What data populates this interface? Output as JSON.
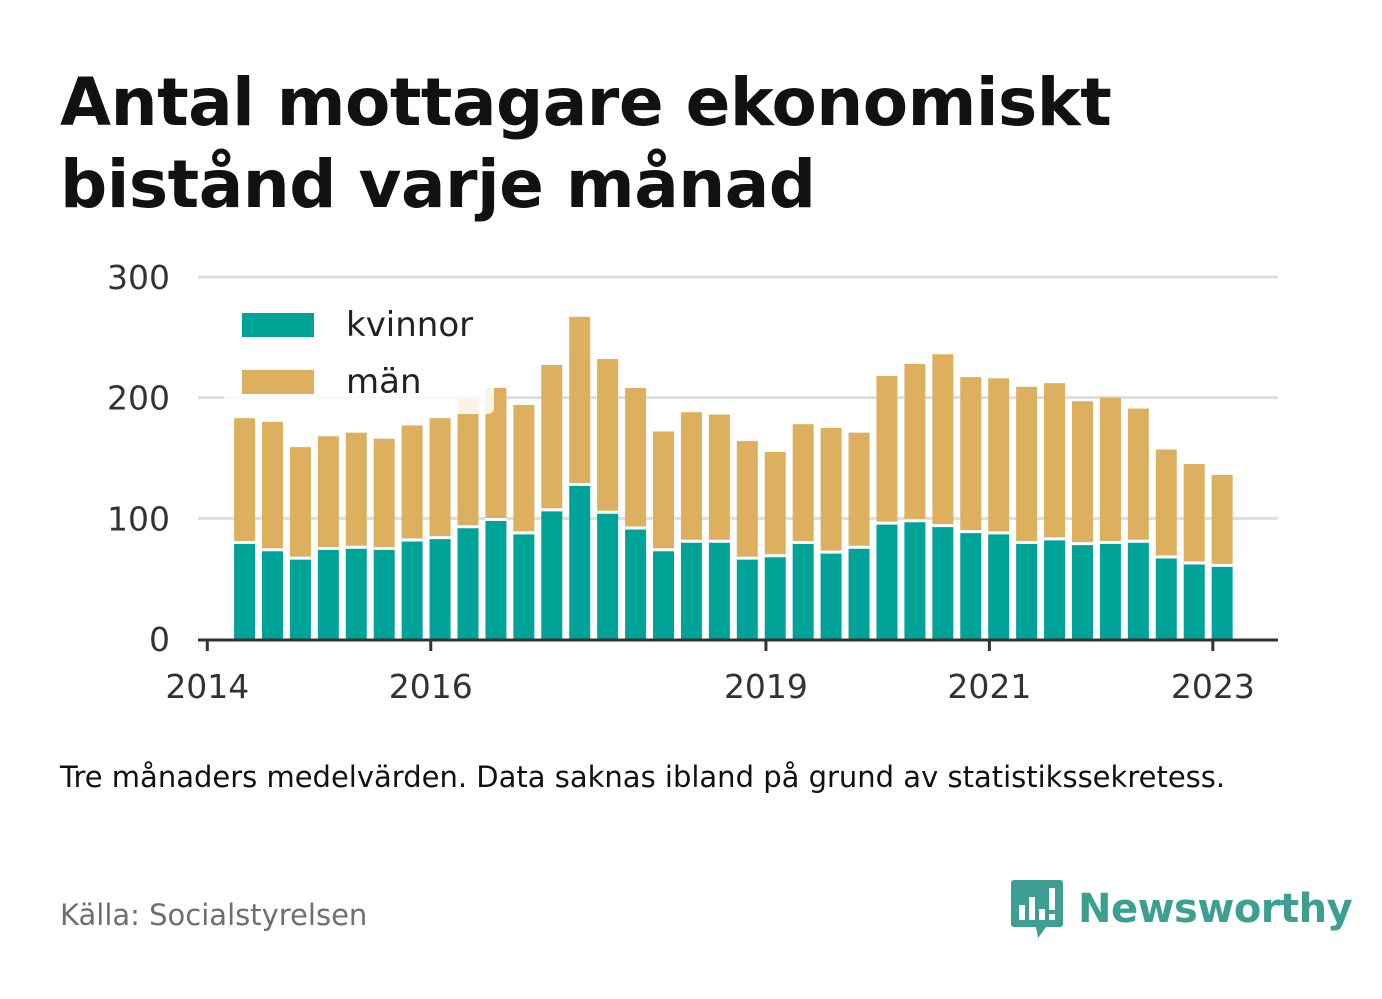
{
  "header": {
    "title": "Antal mottagare ekonomiskt bistånd varje månad"
  },
  "footer": {
    "note": "Tre månaders medelvärden. Data saknas ibland på grund av statistikssekretess.",
    "source": "Källa: Socialstyrelsen",
    "brand": "Newsworthy",
    "brand_icon": "bar-chart-speech-bubble-icon"
  },
  "colors": {
    "kvinnor": "#00a398",
    "man": "#dcb05f",
    "brand": "#3d9e92",
    "grid": "#dddddd",
    "axis": "#333333"
  },
  "chart_data": {
    "type": "bar",
    "stacked": true,
    "title": "Antal mottagare ekonomiskt bistånd varje månad",
    "ylim": [
      0,
      300
    ],
    "yticks": [
      0,
      100,
      200,
      300
    ],
    "xticks": [
      "2014",
      "2016",
      "2019",
      "2021",
      "2023"
    ],
    "grid": true,
    "legend_position": "top-left",
    "legend": [
      "kvinnor",
      "män"
    ],
    "xlim": [
      "2013-12",
      "2023-08"
    ],
    "x": [
      "2014-05",
      "2014-08",
      "2014-11",
      "2015-02",
      "2015-05",
      "2015-08",
      "2015-11",
      "2016-02",
      "2016-05",
      "2016-08",
      "2016-11",
      "2017-02",
      "2017-05",
      "2017-08",
      "2017-11",
      "2018-02",
      "2018-05",
      "2018-08",
      "2018-11",
      "2019-02",
      "2019-05",
      "2019-08",
      "2019-11",
      "2020-02",
      "2020-05",
      "2020-08",
      "2020-11",
      "2021-02",
      "2021-05",
      "2021-08",
      "2021-11",
      "2022-02",
      "2022-05",
      "2022-08",
      "2022-11",
      "2023-02"
    ],
    "series": [
      {
        "name": "kvinnor",
        "values": [
          80,
          74,
          67,
          75,
          76,
          75,
          82,
          84,
          93,
          99,
          88,
          107,
          128,
          105,
          92,
          74,
          81,
          81,
          67,
          69,
          80,
          72,
          76,
          96,
          98,
          94,
          89,
          88,
          80,
          83,
          79,
          80,
          81,
          68,
          63,
          61
        ]
      },
      {
        "name": "män",
        "values": [
          103,
          106,
          92,
          93,
          95,
          91,
          95,
          99,
          107,
          109,
          106,
          120,
          139,
          127,
          116,
          98,
          107,
          105,
          97,
          86,
          98,
          103,
          95,
          122,
          130,
          142,
          128,
          128,
          129,
          129,
          118,
          120,
          110,
          89,
          82,
          75
        ]
      }
    ]
  }
}
